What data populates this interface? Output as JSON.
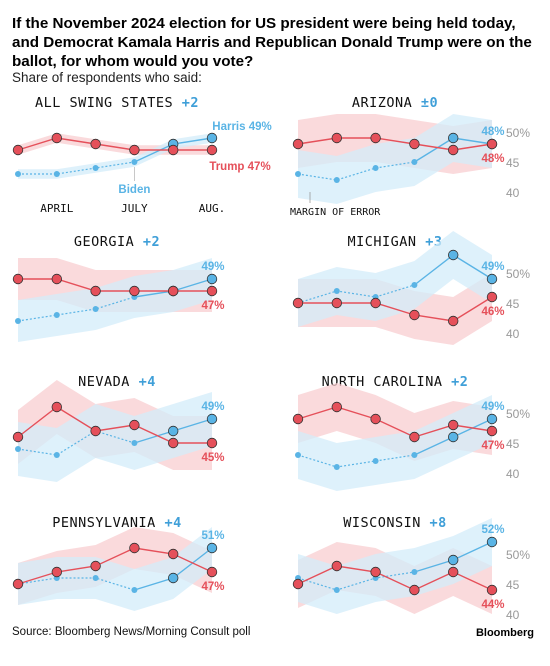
{
  "headline": "If the November 2024 election for US president were being held today, and Democrat Kamala Harris and Republican Donald Trump were on the ballot, for whom would you vote?",
  "subhead": "Share of respondents who said:",
  "source": "Source: Bloomberg News/Morning Consult poll",
  "brand": "Bloomberg",
  "colors": {
    "harris": "#5ab4e5",
    "trump": "#e5505a",
    "harris_band": "#d3ecf9",
    "trump_band": "#f8cdd0",
    "lead": "#3f9fd8"
  },
  "annotations": {
    "margin_of_error": "MARGIN OF ERROR",
    "biden": "Biden",
    "x_ticks": [
      "APRIL",
      "JULY",
      "AUG."
    ]
  },
  "chart_data": [
    {
      "type": "line",
      "state": "ALL SWING STATES",
      "lead": "+2",
      "ylim": [
        40,
        52
      ],
      "series": [
        {
          "name": "Harris",
          "values": [
            43,
            43,
            44,
            45,
            48,
            49
          ],
          "band": 0.8
        },
        {
          "name": "Trump",
          "values": [
            47,
            49,
            48,
            47,
            47,
            47
          ],
          "band": 0.8
        }
      ],
      "end_labels": {
        "harris": "Harris 49%",
        "trump": "Trump 47%"
      }
    },
    {
      "type": "line",
      "state": "ARIZONA",
      "lead": "±0",
      "ylim": [
        40,
        52
      ],
      "yticks": [
        "50%",
        "45",
        "40"
      ],
      "series": [
        {
          "name": "Harris",
          "values": [
            43,
            42,
            44,
            45,
            49,
            48
          ],
          "band": 4
        },
        {
          "name": "Trump",
          "values": [
            48,
            49,
            49,
            48,
            47,
            48
          ],
          "band": 4
        }
      ],
      "end_labels": {
        "harris": "48%",
        "trump": "48%"
      }
    },
    {
      "type": "line",
      "state": "GEORGIA",
      "lead": "+2",
      "ylim": [
        40,
        52
      ],
      "series": [
        {
          "name": "Harris",
          "values": [
            42,
            43,
            44,
            46,
            47,
            49
          ],
          "band": 3.5
        },
        {
          "name": "Trump",
          "values": [
            49,
            49,
            47,
            47,
            47,
            47
          ],
          "band": 3.5
        }
      ],
      "end_labels": {
        "harris": "49%",
        "trump": "47%"
      }
    },
    {
      "type": "line",
      "state": "MICHIGAN",
      "lead": "+3",
      "ylim": [
        40,
        52
      ],
      "yticks": [
        "50%",
        "45",
        "40"
      ],
      "series": [
        {
          "name": "Harris",
          "values": [
            45,
            47,
            46,
            48,
            53,
            49
          ],
          "band": 4
        },
        {
          "name": "Trump",
          "values": [
            45,
            45,
            45,
            43,
            42,
            46
          ],
          "band": 4
        }
      ],
      "end_labels": {
        "harris": "49%",
        "trump": "46%"
      }
    },
    {
      "type": "line",
      "state": "NEVADA",
      "lead": "+4",
      "ylim": [
        40,
        52
      ],
      "series": [
        {
          "name": "Harris",
          "values": [
            44,
            43,
            47,
            45,
            47,
            49
          ],
          "band": 4.5
        },
        {
          "name": "Trump",
          "values": [
            46,
            51,
            47,
            48,
            45,
            45
          ],
          "band": 4.5
        }
      ],
      "end_labels": {
        "harris": "49%",
        "trump": "45%"
      }
    },
    {
      "type": "line",
      "state": "NORTH CAROLINA",
      "lead": "+2",
      "ylim": [
        40,
        52
      ],
      "yticks": [
        "50%",
        "45",
        "40"
      ],
      "series": [
        {
          "name": "Harris",
          "values": [
            43,
            41,
            42,
            43,
            46,
            49
          ],
          "band": 4
        },
        {
          "name": "Trump",
          "values": [
            49,
            51,
            49,
            46,
            48,
            47
          ],
          "band": 4
        }
      ],
      "end_labels": {
        "harris": "49%",
        "trump": "47%"
      }
    },
    {
      "type": "line",
      "state": "PENNSYLVANIA",
      "lead": "+4",
      "ylim": [
        40,
        52
      ],
      "series": [
        {
          "name": "Harris",
          "values": [
            45,
            46,
            46,
            44,
            46,
            51
          ],
          "band": 3.5
        },
        {
          "name": "Trump",
          "values": [
            45,
            47,
            48,
            51,
            50,
            47
          ],
          "band": 3.5
        }
      ],
      "end_labels": {
        "harris": "51%",
        "trump": "47%"
      }
    },
    {
      "type": "line",
      "state": "WISCONSIN",
      "lead": "+8",
      "ylim": [
        40,
        52
      ],
      "yticks": [
        "50%",
        "45",
        "40"
      ],
      "series": [
        {
          "name": "Harris",
          "values": [
            46,
            44,
            46,
            47,
            49,
            52
          ],
          "band": 4
        },
        {
          "name": "Trump",
          "values": [
            45,
            48,
            47,
            44,
            47,
            44
          ],
          "band": 4
        }
      ],
      "end_labels": {
        "harris": "52%",
        "trump": "44%"
      }
    }
  ]
}
